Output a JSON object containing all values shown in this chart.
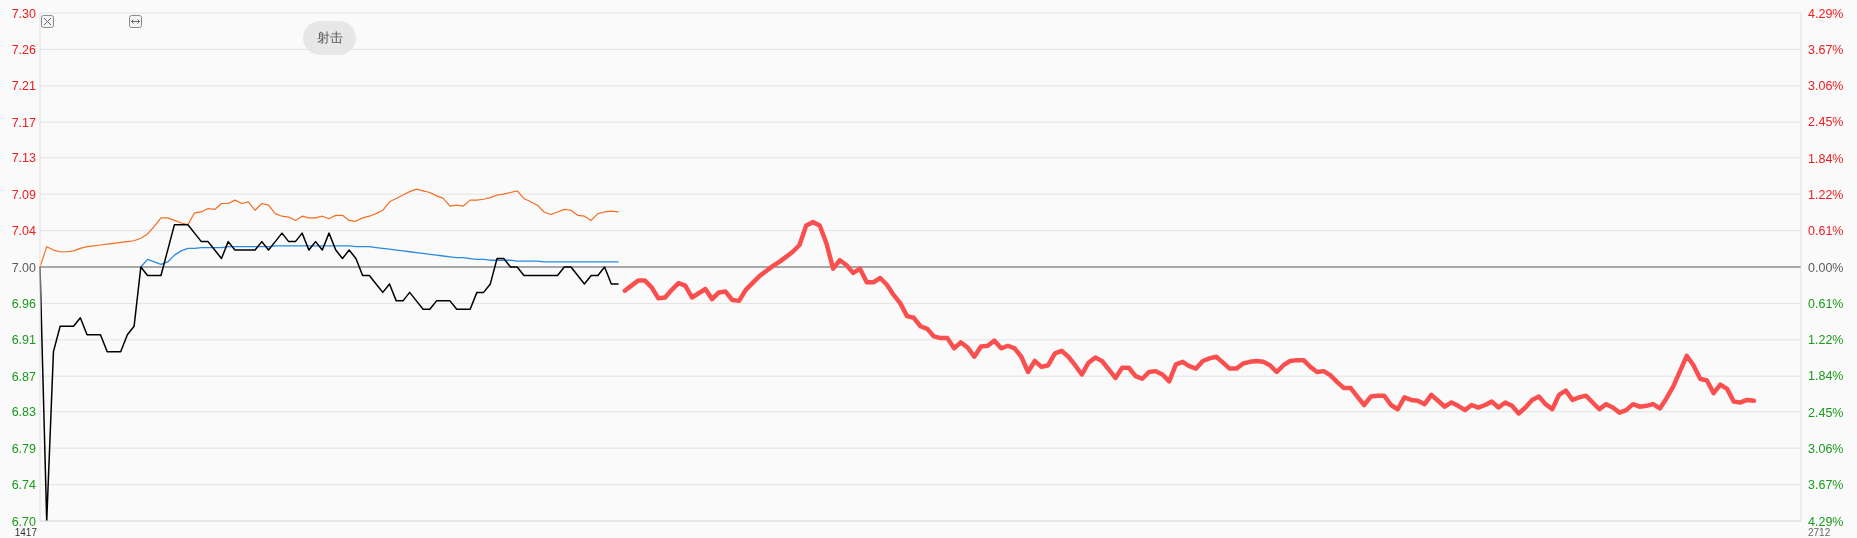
{
  "chart_data": {
    "type": "line",
    "categories": [
      null,
      null,
      null,
      null,
      null,
      null,
      null,
      null,
      null,
      null,
      null,
      null,
      null,
      null,
      null,
      null,
      null,
      null,
      null,
      null,
      null,
      null,
      null,
      null,
      null,
      null,
      null,
      null,
      null,
      null,
      null,
      null,
      null,
      null,
      null,
      null,
      null,
      null,
      null,
      null,
      null,
      null,
      null,
      null,
      null,
      null,
      null,
      null,
      null,
      null,
      null,
      null,
      null,
      null,
      null,
      null,
      null,
      null,
      null,
      null,
      null,
      null,
      null,
      null,
      null,
      null,
      null,
      null,
      null,
      null,
      null,
      null,
      null,
      null,
      null,
      null,
      null,
      null,
      null,
      null,
      null,
      null,
      null,
      null,
      null,
      null,
      null,
      null,
      null,
      null,
      null,
      null,
      null,
      null,
      null,
      null,
      null,
      null,
      null,
      null,
      null,
      null,
      null,
      null,
      null,
      null,
      null,
      null,
      null,
      null,
      null,
      null,
      null,
      null,
      null,
      null,
      null,
      null,
      null,
      null,
      null,
      null,
      null,
      null,
      null,
      null,
      null,
      null,
      null,
      null,
      null,
      null,
      null,
      null,
      null,
      null,
      null,
      null,
      null,
      null,
      null,
      null,
      null,
      null,
      null,
      null,
      null,
      null,
      null,
      null,
      null,
      null,
      null,
      null,
      null,
      null,
      null,
      null,
      null,
      null,
      null,
      null,
      null,
      null,
      null,
      null,
      null,
      null,
      null,
      null,
      null,
      null,
      null,
      null,
      null,
      null,
      null,
      null,
      null,
      null,
      null,
      null,
      null,
      null,
      null,
      null,
      null,
      null,
      null,
      null,
      null,
      null,
      null,
      null,
      null,
      null,
      null,
      null,
      null,
      null,
      null,
      null,
      null,
      null,
      null,
      null,
      null,
      null,
      null,
      null,
      null,
      null,
      null,
      null,
      null,
      null,
      null,
      null,
      null,
      null,
      null,
      null,
      null,
      null,
      null,
      null,
      null,
      null,
      null,
      null,
      null,
      null,
      null,
      null,
      null,
      null,
      null,
      null,
      null,
      null,
      null,
      null,
      null,
      null,
      null,
      null,
      null,
      null,
      null,
      null,
      null,
      null,
      null,
      null,
      null,
      null,
      null,
      null,
      null,
      null,
      null,
      null,
      null
    ],
    "ylim": [
      6.7,
      7.3
    ],
    "yticks": [
      {
        "value": 6.7,
        "label": "6.70"
      },
      {
        "value": 6.743,
        "label": "6.74"
      },
      {
        "value": 6.786,
        "label": "6.79"
      },
      {
        "value": 6.829,
        "label": "6.83"
      },
      {
        "value": 6.871,
        "label": "6.87"
      },
      {
        "value": 6.914,
        "label": "6.91"
      },
      {
        "value": 6.957,
        "label": "6.96"
      },
      {
        "value": 7.0,
        "label": "7.00"
      },
      {
        "value": 7.043,
        "label": "7.04"
      },
      {
        "value": 7.086,
        "label": "7.09"
      },
      {
        "value": 7.129,
        "label": "7.13"
      },
      {
        "value": 7.171,
        "label": "7.17"
      },
      {
        "value": 7.214,
        "label": "7.21"
      },
      {
        "value": 7.257,
        "label": "7.26"
      },
      {
        "value": 7.3,
        "label": "7.30"
      }
    ],
    "y2lim": [
      -4.286,
      4.286
    ],
    "y2ticks": [
      {
        "value": -4.286,
        "label": "4.29%"
      },
      {
        "value": -3.673,
        "label": "3.67%"
      },
      {
        "value": -3.061,
        "label": "3.06%"
      },
      {
        "value": -2.449,
        "label": "2.45%"
      },
      {
        "value": -1.837,
        "label": "1.84%"
      },
      {
        "value": -1.224,
        "label": "1.22%"
      },
      {
        "value": -0.612,
        "label": "0.61%"
      },
      {
        "value": 0,
        "label": "0.00%"
      },
      {
        "value": 0.612,
        "label": "0.61%"
      },
      {
        "value": 1.224,
        "label": "1.22%"
      },
      {
        "value": 1.837,
        "label": "1.84%"
      },
      {
        "value": 2.449,
        "label": "2.45%"
      },
      {
        "value": 3.061,
        "label": "3.06%"
      },
      {
        "value": 3.673,
        "label": "3.67%"
      },
      {
        "value": 4.286,
        "label": "4.29%"
      }
    ],
    "grid": "y",
    "ref_lines": [
      {
        "axis": "y",
        "value": 7.0,
        "color": "#a8a8a8"
      }
    ],
    "annotations": [
      "射击",
      "1417",
      "2712"
    ],
    "series": [
      {
        "color": "#f26f21",
        "values": [
          7.0,
          7.024,
          7.02,
          7.018,
          7.018,
          7.019,
          7.022,
          7.024,
          7.025,
          7.026,
          7.027,
          7.028,
          7.029,
          7.03,
          7.031,
          7.034,
          7.039,
          7.048,
          7.058,
          7.058,
          7.055,
          7.052,
          7.05,
          7.064,
          7.065,
          7.069,
          7.068,
          7.075,
          7.075,
          7.079,
          7.075,
          7.077,
          7.067,
          7.075,
          7.073,
          7.063,
          7.06,
          7.059,
          7.055,
          7.06,
          7.058,
          7.058,
          7.06,
          7.057,
          7.061,
          7.061,
          7.055,
          7.054,
          7.058,
          7.06,
          7.063,
          7.067,
          7.077,
          7.081,
          7.085,
          7.089,
          7.092,
          7.09,
          7.088,
          7.084,
          7.081,
          7.072,
          7.073,
          7.072,
          7.079,
          7.079,
          7.08,
          7.082,
          7.085,
          7.086,
          7.088,
          7.09,
          7.081,
          7.077,
          7.073,
          7.065,
          7.062,
          7.065,
          7.068,
          7.067,
          7.061,
          7.06,
          7.055,
          7.063,
          7.065,
          7.066,
          7.065,
          null,
          null,
          null,
          null,
          null,
          null,
          null,
          null,
          null,
          null,
          null,
          null,
          null,
          null,
          null,
          null,
          null,
          null,
          null,
          null,
          null,
          null,
          null,
          null,
          null,
          null,
          null,
          null,
          null,
          null,
          null,
          null,
          null,
          null,
          null,
          null,
          null,
          null,
          null,
          null,
          null,
          null,
          null,
          null,
          null,
          null,
          null,
          null,
          null,
          null,
          null,
          null,
          null,
          null,
          null,
          null,
          null,
          null,
          null,
          null,
          null,
          null,
          null,
          null,
          null,
          null,
          null,
          null,
          null,
          null,
          null,
          null,
          null,
          null,
          null,
          null,
          null,
          null,
          null,
          null,
          null,
          null,
          null,
          null,
          null,
          null,
          null,
          null,
          null,
          null,
          null,
          null,
          null,
          null,
          null,
          null,
          null,
          null,
          null,
          null,
          null,
          null,
          null,
          null,
          null,
          null,
          null,
          null,
          null,
          null,
          null,
          null,
          null,
          null,
          null,
          null,
          null,
          null,
          null,
          null,
          null,
          null,
          null,
          null,
          null,
          null,
          null,
          null,
          null,
          null,
          null,
          null,
          null,
          null,
          null,
          null,
          null,
          null,
          null,
          null,
          null,
          null,
          null,
          null,
          null,
          null,
          null,
          null,
          null,
          null,
          null,
          null,
          null,
          null,
          null,
          null,
          null,
          null,
          null,
          null,
          null,
          null,
          null,
          null,
          null,
          null,
          null,
          null,
          null,
          null,
          null,
          null,
          null,
          null,
          null,
          null
        ]
      },
      {
        "color": "#2a8ae0",
        "values": [
          null,
          null,
          null,
          null,
          null,
          null,
          null,
          null,
          null,
          null,
          null,
          null,
          null,
          null,
          null,
          7.0,
          7.009,
          7.006,
          7.003,
          7.006,
          7.014,
          7.019,
          7.022,
          7.022,
          7.023,
          7.023,
          7.023,
          7.023,
          7.024,
          7.024,
          7.024,
          7.024,
          7.024,
          7.024,
          7.024,
          7.025,
          7.025,
          7.025,
          7.025,
          7.025,
          7.025,
          7.025,
          7.025,
          7.025,
          7.025,
          7.025,
          7.025,
          7.024,
          7.024,
          7.024,
          7.023,
          7.022,
          7.021,
          7.02,
          7.019,
          7.018,
          7.017,
          7.016,
          7.015,
          7.014,
          7.013,
          7.012,
          7.011,
          7.011,
          7.01,
          7.009,
          7.009,
          7.008,
          7.008,
          7.008,
          7.008,
          7.007,
          7.007,
          7.007,
          7.007,
          7.006,
          7.006,
          7.006,
          7.006,
          7.006,
          7.006,
          7.006,
          7.006,
          7.006,
          7.006,
          7.006,
          7.006,
          null,
          null,
          null,
          null,
          null,
          null,
          null,
          null,
          null,
          null,
          null,
          null,
          null,
          null,
          null,
          null,
          null,
          null,
          null,
          null,
          null,
          null,
          null,
          null,
          null,
          null,
          null,
          null,
          null,
          null,
          null,
          null,
          null,
          null,
          null,
          null,
          null,
          null,
          null,
          null,
          null,
          null,
          null,
          null,
          null,
          null,
          null,
          null,
          null,
          null,
          null,
          null,
          null,
          null,
          null,
          null,
          null,
          null,
          null,
          null,
          null,
          null,
          null,
          null,
          null,
          null,
          null,
          null,
          null,
          null,
          null,
          null,
          null,
          null,
          null,
          null,
          null,
          null,
          null,
          null,
          null,
          null,
          null,
          null,
          null,
          null,
          null,
          null,
          null,
          null,
          null,
          null,
          null,
          null,
          null,
          null,
          null,
          null,
          null,
          null,
          null,
          null,
          null,
          null,
          null,
          null,
          null,
          null,
          null,
          null,
          null,
          null,
          null,
          null,
          null,
          null,
          null,
          null,
          null,
          null,
          null,
          null,
          null,
          null,
          null,
          null,
          null,
          null,
          null,
          null,
          null,
          null,
          null,
          null,
          null,
          null,
          null,
          null,
          null,
          null,
          null,
          null,
          null,
          null,
          null,
          null,
          null,
          null,
          null,
          null,
          null,
          null,
          null,
          null,
          null,
          null,
          null,
          null,
          null,
          null,
          null,
          null,
          null,
          null,
          null,
          null,
          null,
          null,
          null,
          null,
          null,
          null,
          null,
          null,
          null,
          null
        ]
      },
      {
        "color": "#000000",
        "values": [
          7.0,
          6.7,
          6.9,
          6.93,
          6.93,
          6.93,
          6.94,
          6.92,
          6.92,
          6.92,
          6.9,
          6.9,
          6.9,
          6.92,
          6.93,
          7.0,
          6.99,
          6.99,
          6.99,
          7.02,
          7.05,
          7.05,
          7.05,
          7.04,
          7.03,
          7.03,
          7.02,
          7.01,
          7.03,
          7.02,
          7.02,
          7.02,
          7.02,
          7.03,
          7.02,
          7.03,
          7.04,
          7.03,
          7.03,
          7.04,
          7.02,
          7.03,
          7.02,
          7.04,
          7.02,
          7.01,
          7.02,
          7.01,
          6.99,
          6.99,
          6.98,
          6.97,
          6.98,
          6.96,
          6.96,
          6.97,
          6.96,
          6.95,
          6.95,
          6.96,
          6.96,
          6.96,
          6.95,
          6.95,
          6.95,
          6.97,
          6.97,
          6.98,
          7.01,
          7.01,
          7.0,
          7.0,
          6.99,
          6.99,
          6.99,
          6.99,
          6.99,
          6.99,
          7.0,
          7.0,
          6.99,
          6.98,
          6.99,
          6.99,
          7.0,
          6.98,
          6.98,
          null,
          null,
          null,
          null,
          null,
          null,
          null,
          null,
          null,
          null,
          null,
          null,
          null,
          null,
          null,
          null,
          null,
          null,
          null,
          null,
          null,
          null,
          null,
          null,
          null,
          null,
          null,
          null,
          null,
          null,
          null,
          null,
          null,
          null,
          null,
          null,
          null,
          null,
          null,
          null,
          null,
          null,
          null,
          null,
          null,
          null,
          null,
          null,
          null,
          null,
          null,
          null,
          null,
          null,
          null,
          null,
          null,
          null,
          null,
          null,
          null,
          null,
          null,
          null,
          null,
          null,
          null,
          null,
          null,
          null,
          null,
          null,
          null,
          null,
          null,
          null,
          null,
          null,
          null,
          null,
          null,
          null,
          null,
          null,
          null,
          null,
          null,
          null,
          null,
          null,
          null,
          null,
          null,
          null,
          null,
          null,
          null,
          null,
          null,
          null,
          null,
          null,
          null,
          null,
          null,
          null,
          null,
          null,
          null,
          null,
          null,
          null,
          null,
          null,
          null,
          null,
          null,
          null,
          null,
          null,
          null,
          null,
          null,
          null,
          null,
          null,
          null,
          null,
          null,
          null,
          null,
          null,
          null,
          null,
          null,
          null,
          null,
          null,
          null,
          null,
          null,
          null,
          null,
          null,
          null,
          null,
          null,
          null,
          null,
          null,
          null,
          null,
          null,
          null,
          null,
          null,
          null,
          null,
          null,
          null,
          null,
          null,
          null,
          null,
          null,
          null,
          null,
          null,
          null,
          null,
          null,
          null,
          null,
          null,
          null,
          null
        ]
      },
      {
        "color": "#fa4f4f",
        "values": [
          null,
          null,
          null,
          null,
          null,
          null,
          null,
          null,
          null,
          null,
          null,
          null,
          null,
          null,
          null,
          null,
          null,
          null,
          null,
          null,
          null,
          null,
          null,
          null,
          null,
          null,
          null,
          null,
          null,
          null,
          null,
          null,
          null,
          null,
          null,
          null,
          null,
          null,
          null,
          null,
          null,
          null,
          null,
          null,
          null,
          null,
          null,
          null,
          null,
          null,
          null,
          null,
          null,
          null,
          null,
          null,
          null,
          null,
          null,
          null,
          null,
          null,
          null,
          null,
          null,
          null,
          null,
          null,
          null,
          null,
          null,
          null,
          null,
          null,
          null,
          null,
          null,
          null,
          null,
          null,
          null,
          null,
          null,
          null,
          null,
          null,
          null,
          6.972,
          6.978,
          6.984,
          6.984,
          6.976,
          6.963,
          6.964,
          6.973,
          6.981,
          6.978,
          6.964,
          6.969,
          6.974,
          6.962,
          6.97,
          6.971,
          6.961,
          6.96,
          6.973,
          6.981,
          6.989,
          6.995,
          7.001,
          7.006,
          7.012,
          7.018,
          7.026,
          7.049,
          7.053,
          7.049,
          7.028,
          6.998,
          7.008,
          7.002,
          6.993,
          6.998,
          6.982,
          6.982,
          6.987,
          6.979,
          6.967,
          6.957,
          6.942,
          6.94,
          6.93,
          6.927,
          6.918,
          6.916,
          6.916,
          6.904,
          6.911,
          6.905,
          6.894,
          6.906,
          6.907,
          6.913,
          6.904,
          6.907,
          6.904,
          6.894,
          6.876,
          6.889,
          6.882,
          6.884,
          6.898,
          6.901,
          6.894,
          6.884,
          6.873,
          6.887,
          6.893,
          6.889,
          6.879,
          6.869,
          6.881,
          6.881,
          6.871,
          6.868,
          6.876,
          6.877,
          6.873,
          6.865,
          6.885,
          6.888,
          6.883,
          6.88,
          6.889,
          6.892,
          6.894,
          6.887,
          6.88,
          6.88,
          6.886,
          6.888,
          6.889,
          6.888,
          6.884,
          6.876,
          6.884,
          6.889,
          6.89,
          6.89,
          6.882,
          6.876,
          6.877,
          6.872,
          6.864,
          6.857,
          6.857,
          6.847,
          6.837,
          6.847,
          6.848,
          6.848,
          6.837,
          6.832,
          6.846,
          6.843,
          6.842,
          6.838,
          6.849,
          6.842,
          6.835,
          6.84,
          6.836,
          6.831,
          6.837,
          6.834,
          6.837,
          6.841,
          6.834,
          6.84,
          6.836,
          6.827,
          6.834,
          6.843,
          6.847,
          6.838,
          6.832,
          6.849,
          6.854,
          6.843,
          6.846,
          6.848,
          6.84,
          6.832,
          6.838,
          6.834,
          6.828,
          6.831,
          6.838,
          6.835,
          6.836,
          6.838,
          6.833,
          6.845,
          6.859,
          6.877,
          6.895,
          6.884,
          6.868,
          6.866,
          6.851,
          6.861,
          6.856,
          6.841,
          6.84,
          6.843,
          6.842,
          null,
          null,
          null,
          null,
          null,
          null,
          null
        ]
      }
    ]
  }
}
